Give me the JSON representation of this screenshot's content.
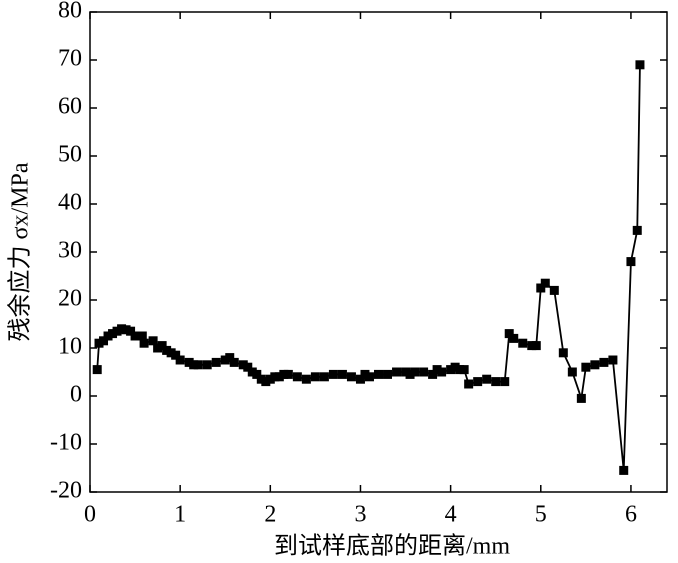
{
  "chart_data": {
    "type": "line",
    "xlabel": "到试样底部的距离/mm",
    "ylabel": "残余应力 σx/MPa",
    "x": [
      0.08,
      0.1,
      0.15,
      0.2,
      0.25,
      0.3,
      0.35,
      0.4,
      0.45,
      0.5,
      0.58,
      0.6,
      0.7,
      0.75,
      0.8,
      0.85,
      0.9,
      0.95,
      1.0,
      1.1,
      1.15,
      1.2,
      1.3,
      1.4,
      1.5,
      1.55,
      1.6,
      1.7,
      1.75,
      1.8,
      1.85,
      1.9,
      1.95,
      2.0,
      2.05,
      2.1,
      2.15,
      2.2,
      2.3,
      2.4,
      2.5,
      2.6,
      2.7,
      2.8,
      2.9,
      3.0,
      3.05,
      3.1,
      3.2,
      3.3,
      3.4,
      3.5,
      3.55,
      3.6,
      3.7,
      3.8,
      3.85,
      3.9,
      4.0,
      4.05,
      4.1,
      4.15,
      4.2,
      4.3,
      4.4,
      4.5,
      4.6,
      4.65,
      4.7,
      4.8,
      4.9,
      4.95,
      5.0,
      5.05,
      5.15,
      5.25,
      5.35,
      5.45,
      5.5,
      5.6,
      5.7,
      5.8,
      5.92,
      6.0,
      6.07,
      6.1
    ],
    "series": [
      {
        "color": "#000000",
        "values": [
          5.5,
          11,
          11.5,
          12.5,
          13,
          13.5,
          14,
          13.8,
          13.5,
          12.5,
          12.5,
          11,
          11.5,
          10,
          10.5,
          9.5,
          9,
          8.5,
          7.5,
          7,
          6.5,
          6.5,
          6.5,
          7,
          7.5,
          8,
          7,
          6.5,
          6,
          5,
          4.5,
          3.5,
          3,
          3.5,
          4,
          4,
          4.5,
          4.5,
          4,
          3.5,
          4,
          4,
          4.5,
          4.5,
          4,
          3.5,
          4.5,
          4,
          4.5,
          4.5,
          5,
          5,
          4.5,
          5,
          5,
          4.5,
          5.5,
          5,
          5.5,
          6,
          5.5,
          5.5,
          2.5,
          3,
          3.5,
          3,
          3,
          13,
          12,
          11,
          10.5,
          10.5,
          22.5,
          23.5,
          22,
          9,
          5,
          -0.5,
          6,
          6.5,
          7,
          7.5,
          -15.5,
          28,
          34.5,
          69
        ]
      }
    ],
    "xlim": [
      0,
      6.4
    ],
    "xticks": [
      0,
      1,
      2,
      3,
      4,
      5,
      6
    ],
    "ylim": [
      -20,
      80
    ],
    "yticks": [
      -20,
      -10,
      0,
      10,
      20,
      30,
      40,
      50,
      60,
      70,
      80
    ]
  }
}
